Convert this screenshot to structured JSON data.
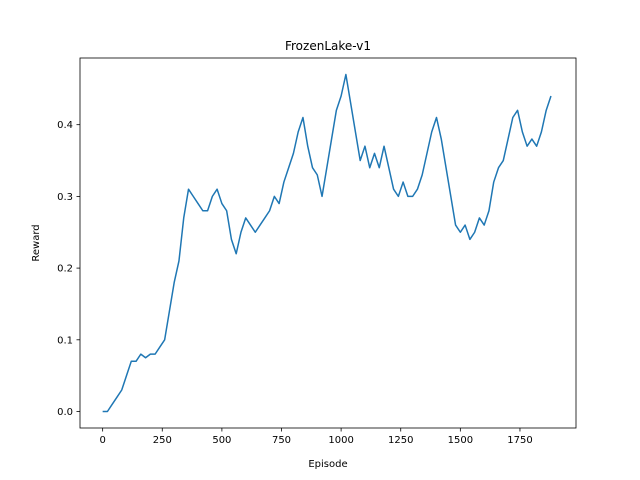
{
  "chart_data": {
    "type": "line",
    "title": "FrozenLake-v1",
    "xlabel": "Episode",
    "ylabel": "Reward",
    "xlim": [
      -95,
      1985
    ],
    "ylim": [
      -0.023,
      0.493
    ],
    "xticks": [
      0,
      250,
      500,
      750,
      1000,
      1250,
      1500,
      1750
    ],
    "yticks": [
      0.0,
      0.1,
      0.2,
      0.3,
      0.4
    ],
    "xtick_labels": [
      "0",
      "250",
      "500",
      "750",
      "1000",
      "1250",
      "1500",
      "1750"
    ],
    "ytick_labels": [
      "0.0",
      "0.1",
      "0.2",
      "0.3",
      "0.4"
    ],
    "grid": false,
    "series": [
      {
        "color": "#1f77b4",
        "x": [
          0,
          20,
          40,
          60,
          80,
          100,
          120,
          140,
          160,
          180,
          200,
          220,
          240,
          260,
          280,
          300,
          320,
          340,
          360,
          380,
          400,
          420,
          440,
          460,
          480,
          500,
          520,
          540,
          560,
          580,
          600,
          620,
          640,
          660,
          680,
          700,
          720,
          740,
          760,
          780,
          800,
          820,
          840,
          860,
          880,
          900,
          920,
          940,
          960,
          980,
          1000,
          1020,
          1040,
          1060,
          1080,
          1100,
          1120,
          1140,
          1160,
          1180,
          1200,
          1220,
          1240,
          1260,
          1280,
          1300,
          1320,
          1340,
          1360,
          1380,
          1400,
          1420,
          1440,
          1460,
          1480,
          1500,
          1520,
          1540,
          1560,
          1580,
          1600,
          1620,
          1640,
          1660,
          1680,
          1700,
          1720,
          1740,
          1760,
          1780,
          1800,
          1820,
          1840,
          1860,
          1880
        ],
        "y": [
          0.0,
          0.0,
          0.01,
          0.02,
          0.03,
          0.05,
          0.07,
          0.07,
          0.08,
          0.075,
          0.08,
          0.08,
          0.09,
          0.1,
          0.14,
          0.18,
          0.21,
          0.27,
          0.31,
          0.3,
          0.29,
          0.28,
          0.28,
          0.3,
          0.31,
          0.29,
          0.28,
          0.24,
          0.22,
          0.25,
          0.27,
          0.26,
          0.25,
          0.26,
          0.27,
          0.28,
          0.3,
          0.29,
          0.32,
          0.34,
          0.36,
          0.39,
          0.41,
          0.37,
          0.34,
          0.33,
          0.3,
          0.34,
          0.38,
          0.42,
          0.44,
          0.47,
          0.43,
          0.39,
          0.35,
          0.37,
          0.34,
          0.36,
          0.34,
          0.37,
          0.34,
          0.31,
          0.3,
          0.32,
          0.3,
          0.3,
          0.31,
          0.33,
          0.36,
          0.39,
          0.41,
          0.38,
          0.34,
          0.3,
          0.26,
          0.25,
          0.26,
          0.24,
          0.25,
          0.27,
          0.26,
          0.28,
          0.32,
          0.34,
          0.35,
          0.38,
          0.41,
          0.42,
          0.39,
          0.37,
          0.38,
          0.37,
          0.39,
          0.42,
          0.44
        ]
      }
    ]
  }
}
